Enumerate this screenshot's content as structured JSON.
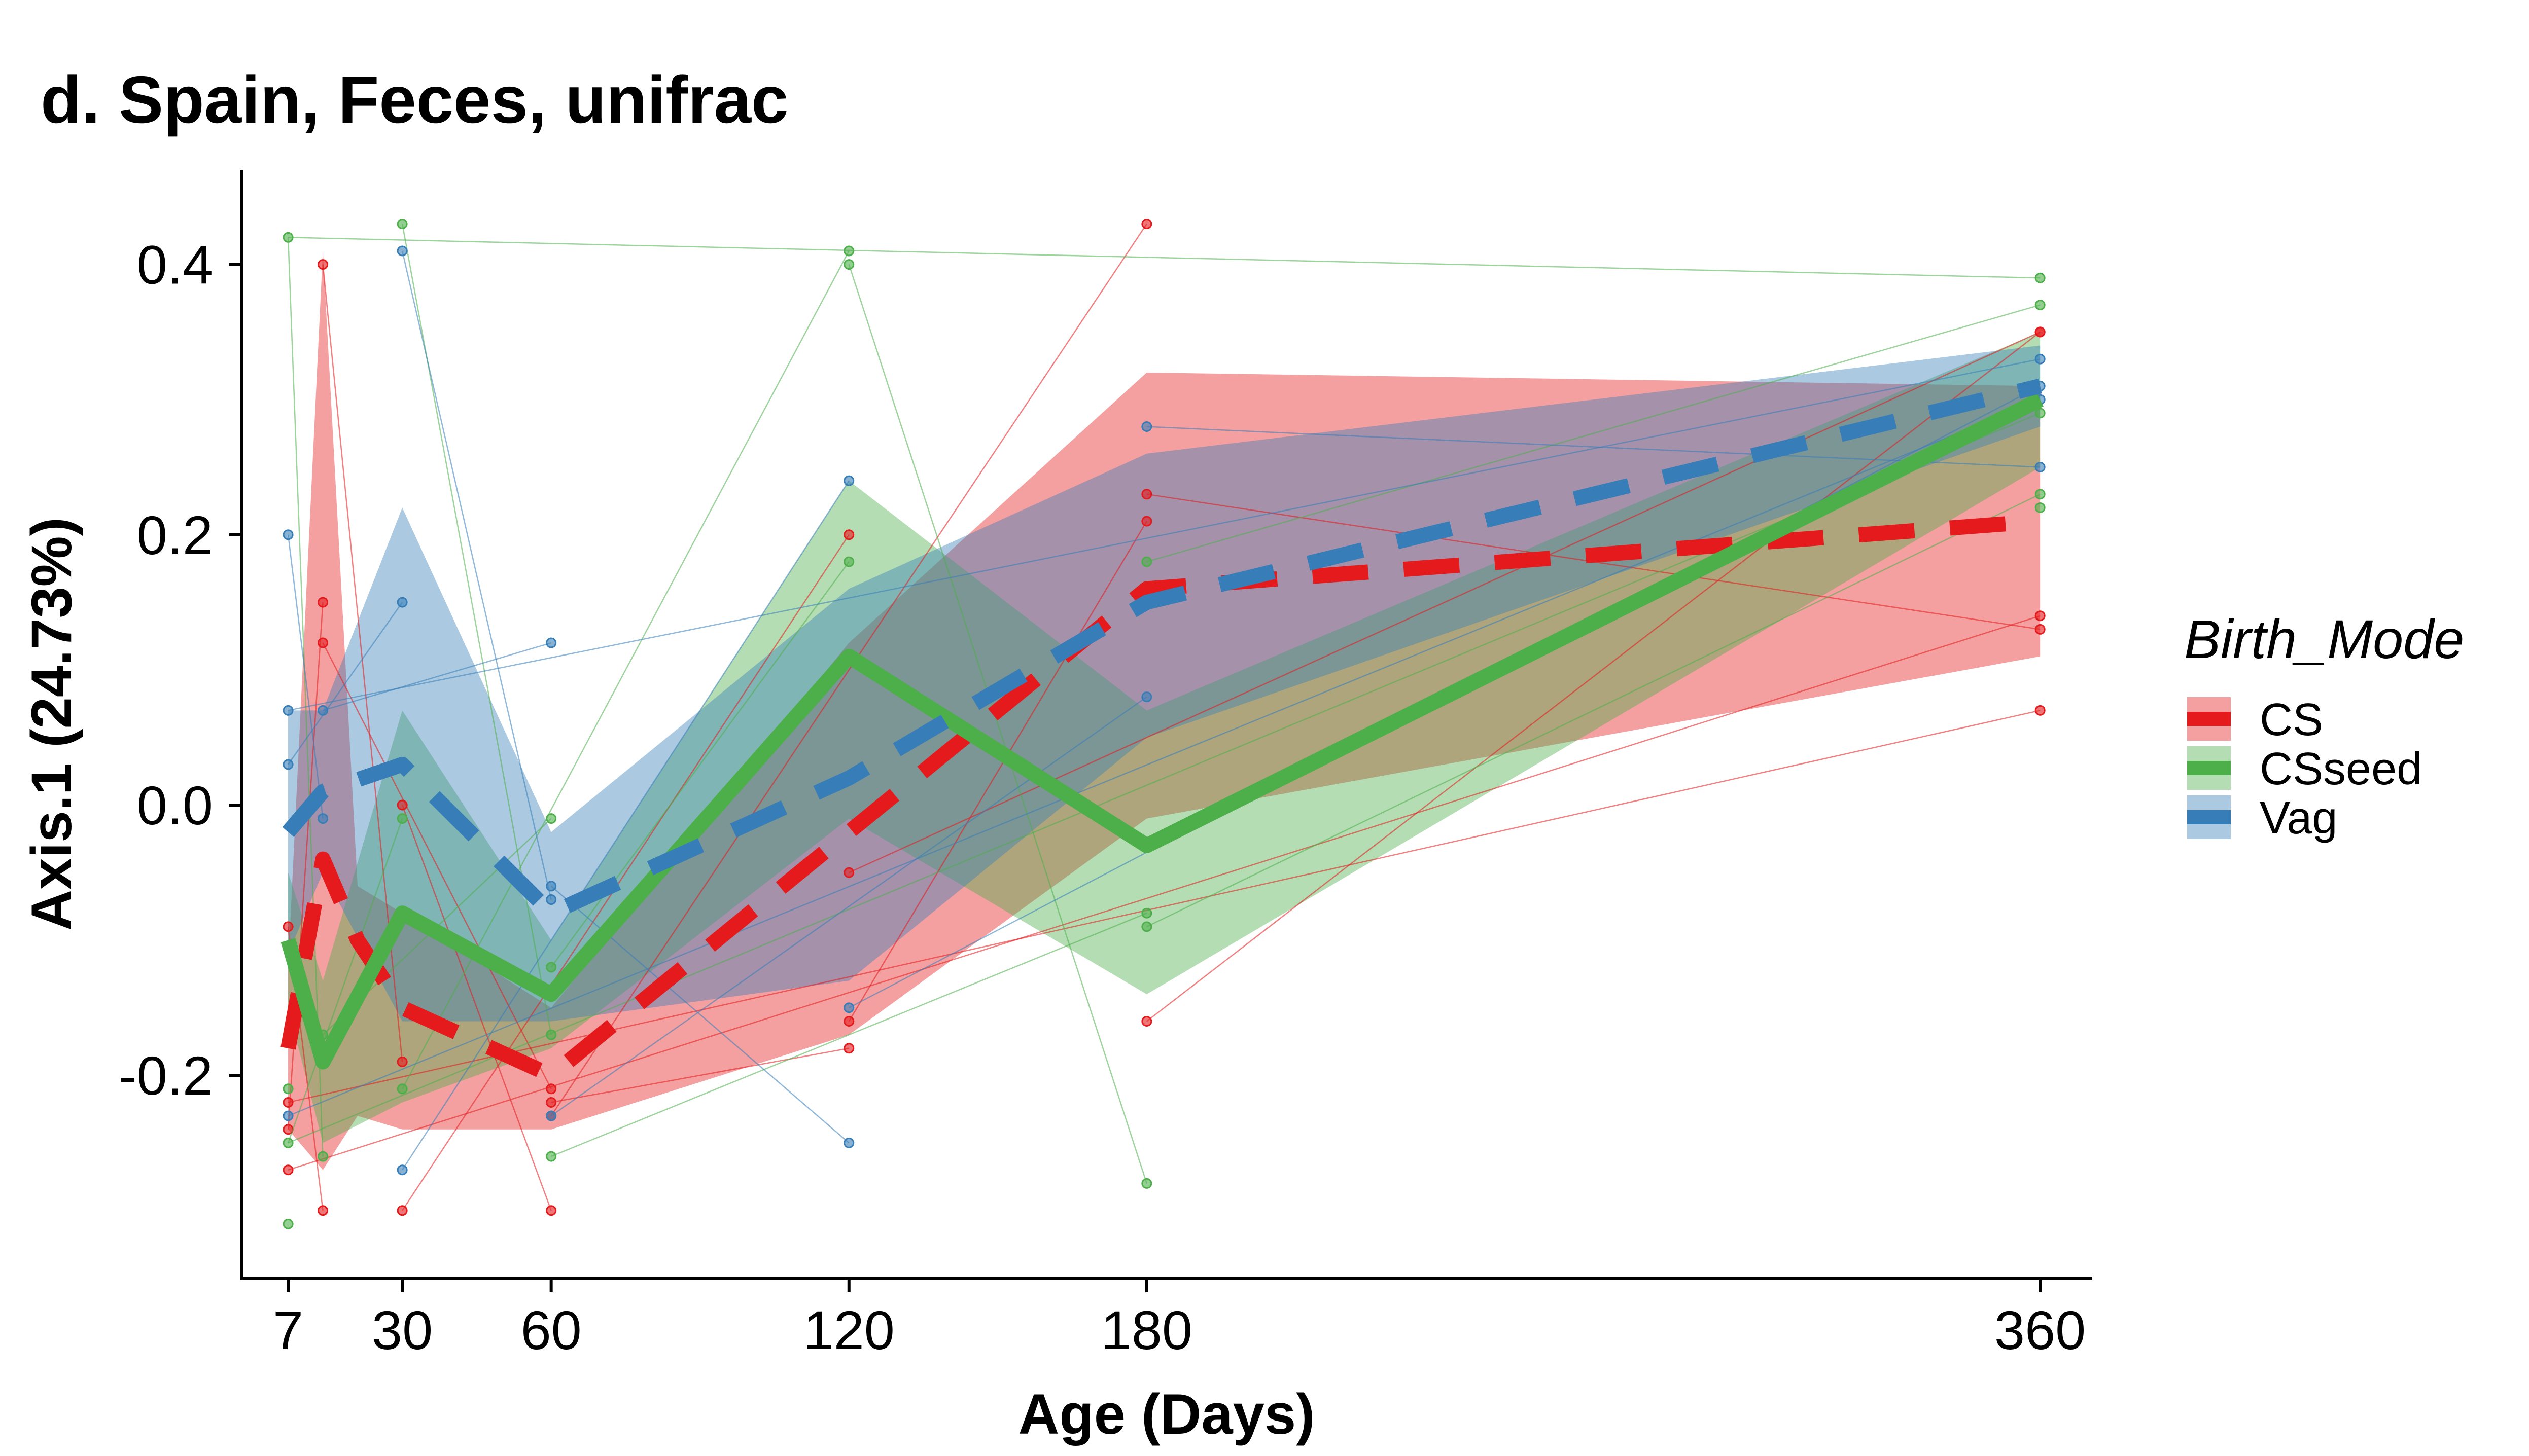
{
  "chart_data": {
    "type": "line",
    "title": "d. Spain, Feces, unifrac",
    "xlabel": "Age (Days)",
    "ylabel": "Axis.1 (24.73%)",
    "xlim": [
      -2,
      370
    ],
    "ylim": [
      -0.35,
      0.47
    ],
    "x_ticks": [
      7,
      30,
      60,
      120,
      180,
      360
    ],
    "x_tick_labels": [
      "7",
      "30",
      "60",
      "120",
      "180",
      "360"
    ],
    "y_ticks": [
      -0.2,
      0.0,
      0.2,
      0.4
    ],
    "y_tick_labels": [
      "-0.2",
      "0.0",
      "0.2",
      "0.4"
    ],
    "grid": false,
    "legend": {
      "title": "Birth_Mode",
      "position": "right"
    },
    "series": [
      {
        "name": "CS",
        "color": "#E41A1C",
        "dash": true,
        "x": [
          7,
          14,
          21,
          30,
          60,
          120,
          180,
          360
        ],
        "y": [
          -0.18,
          -0.04,
          -0.1,
          -0.15,
          -0.2,
          -0.02,
          0.16,
          0.21
        ],
        "ribbon_upper": [
          -0.12,
          0.41,
          -0.06,
          -0.08,
          -0.15,
          0.12,
          0.32,
          0.31
        ],
        "ribbon_lower": [
          -0.24,
          -0.27,
          -0.23,
          -0.24,
          -0.24,
          -0.17,
          -0.01,
          0.11
        ]
      },
      {
        "name": "CSseed",
        "color": "#4DAF4A",
        "dash": false,
        "x": [
          7,
          14,
          30,
          60,
          120,
          180,
          360
        ],
        "y": [
          -0.1,
          -0.19,
          -0.08,
          -0.14,
          0.11,
          -0.03,
          0.3
        ],
        "ribbon_upper": [
          -0.05,
          -0.13,
          0.07,
          -0.1,
          0.24,
          0.07,
          0.35
        ],
        "ribbon_lower": [
          -0.15,
          -0.25,
          -0.22,
          -0.18,
          -0.01,
          -0.14,
          0.25
        ]
      },
      {
        "name": "Vag",
        "color": "#377EB8",
        "dash": true,
        "x": [
          7,
          14,
          30,
          60,
          120,
          180,
          360
        ],
        "y": [
          -0.02,
          0.01,
          0.03,
          -0.08,
          0.02,
          0.15,
          0.31
        ],
        "ribbon_upper": [
          0.07,
          0.07,
          0.22,
          -0.02,
          0.16,
          0.26,
          0.34
        ],
        "ribbon_lower": [
          -0.11,
          -0.05,
          -0.16,
          -0.16,
          -0.13,
          0.05,
          0.28
        ]
      }
    ],
    "individual_points": [
      {
        "series": "CS",
        "x": [
          7,
          7,
          7,
          7,
          14,
          14,
          14,
          14,
          30,
          30,
          30,
          60,
          60,
          60,
          60,
          120,
          120,
          120,
          120,
          180,
          180,
          180,
          180,
          360,
          360,
          360,
          360,
          360
        ],
        "y": [
          -0.24,
          -0.27,
          -0.09,
          -0.22,
          0.4,
          0.15,
          0.12,
          -0.3,
          0.0,
          -0.19,
          -0.3,
          -0.21,
          -0.22,
          -0.3,
          -0.23,
          0.2,
          -0.16,
          -0.18,
          -0.05,
          0.43,
          0.23,
          0.21,
          -0.16,
          0.35,
          0.14,
          0.13,
          0.07,
          0.35
        ]
      },
      {
        "series": "CSseed",
        "x": [
          7,
          7,
          7,
          7,
          14,
          14,
          30,
          30,
          30,
          60,
          60,
          60,
          60,
          120,
          120,
          120,
          180,
          180,
          180,
          180,
          360,
          360,
          360,
          360,
          360
        ],
        "y": [
          0.42,
          -0.21,
          -0.25,
          -0.31,
          -0.17,
          -0.26,
          0.43,
          -0.01,
          -0.21,
          -0.01,
          -0.12,
          -0.17,
          -0.26,
          0.41,
          0.4,
          0.18,
          0.18,
          -0.08,
          -0.09,
          -0.28,
          0.39,
          0.37,
          0.29,
          0.23,
          0.22
        ]
      },
      {
        "series": "Vag",
        "x": [
          7,
          7,
          7,
          7,
          14,
          14,
          30,
          30,
          30,
          60,
          60,
          60,
          60,
          120,
          120,
          120,
          180,
          180,
          360,
          360,
          360,
          360
        ],
        "y": [
          0.2,
          0.07,
          0.03,
          -0.23,
          0.07,
          -0.01,
          0.41,
          0.15,
          -0.27,
          0.12,
          -0.06,
          -0.07,
          -0.23,
          0.24,
          -0.15,
          -0.25,
          0.28,
          0.08,
          0.33,
          0.31,
          0.3,
          0.25
        ]
      }
    ]
  }
}
